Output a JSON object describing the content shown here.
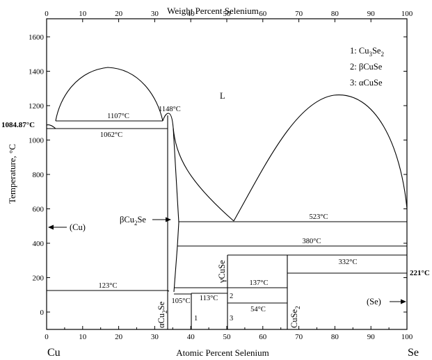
{
  "title_top": "Weight Percent Selenium",
  "axes": {
    "ylabel": "Temperature, °C",
    "xlabel_bottom": "Atomic Percent Selenium",
    "xlabel_top": "Weight Percent Selenium",
    "left_element": "Cu",
    "right_element": "Se",
    "bottom_ticks": [
      "0",
      "10",
      "20",
      "30",
      "40",
      "50",
      "60",
      "70",
      "80",
      "90",
      "100"
    ],
    "top_ticks": [
      "0",
      "10",
      "20",
      "30",
      "40",
      "50",
      "60",
      "70",
      "80",
      "90",
      "100"
    ],
    "y_ticks": [
      "0",
      "200",
      "400",
      "600",
      "800",
      "1000",
      "1200",
      "1400",
      "1600"
    ]
  },
  "legend": {
    "item1": {
      "num": "1:",
      "pre": "Cu",
      "sub1": "3",
      "mid": "Se",
      "sub2": "2"
    },
    "item2": {
      "num": "2:",
      "text": "βCuSe"
    },
    "item3": {
      "num": "3:",
      "text": "αCuSe"
    }
  },
  "labels": {
    "liquid": "L",
    "cu_solid": "(Cu)",
    "se_solid": "(Se)",
    "beta_cu2se": {
      "pre": "βCu",
      "sub": "2",
      "post": "Se"
    },
    "alpha_cu2se": {
      "pre": "αCu",
      "sub": "2",
      "post": "Se"
    },
    "gamma_cuse": "γCuSe",
    "cuse2": {
      "pre": "CuSe",
      "sub": "2"
    },
    "num1": "1",
    "num2": "2",
    "num3": "3"
  },
  "isotherms": {
    "cu_melt": "1084.87°C",
    "t1107": "1107°C",
    "t1148": "1148°C",
    "t1062": "1062°C",
    "t523": "523°C",
    "t380": "380°C",
    "t332": "332°C",
    "se_melt": "221°C",
    "t137": "137°C",
    "t123": "123°C",
    "t113": "113°C",
    "t105": "105°C",
    "t54": "54°C"
  },
  "colors": {
    "line": "#000000",
    "background": "#ffffff"
  }
}
